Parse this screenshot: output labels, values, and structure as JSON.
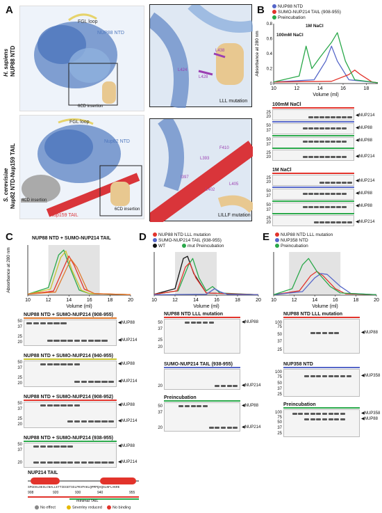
{
  "panel_labels": {
    "a": "A",
    "b": "B",
    "c": "C",
    "d": "D",
    "e": "E"
  },
  "panelA": {
    "top_species": "H. sapiens",
    "top_construct": "NUP88 NTD",
    "top_fgl": "FGL loop",
    "top_ntd": "NUP88 NTD",
    "top_ins": "6CD insertion",
    "top_zoom_caption": "LLL mutation",
    "top_residues": [
      "L438",
      "L424",
      "L428"
    ],
    "bottom_species": "S. cerevisiae",
    "bottom_construct": "Nup82 NTD-Nup159 TAIL",
    "bottom_fgl": "FGL loop",
    "bottom_ntd": "Nup82 NTD",
    "bottom_4cd": "4CD insertion",
    "bottom_6cd": "6CD insertion",
    "bottom_tail": "Nup159 TAIL",
    "bottom_zoom_caption": "LILLF mutation",
    "bottom_residues": [
      "F410",
      "L393",
      "I397",
      "L402",
      "L405"
    ]
  },
  "panelB": {
    "legend": [
      "NUP88 NTD",
      "SUMO-NUP214 TAIL (908-955)",
      "Preincubation"
    ],
    "ylabel": "Absorbance at 280 nm",
    "xlabel": "Volume (ml)",
    "ann_100": "100mM NaCl",
    "ann_1m": "1M NaCl",
    "gel1_title": "100mM NaCl",
    "gel2_title": "1M NaCl",
    "gel_labels": [
      "NUP214",
      "NUP88",
      "NUP88",
      "NUP214",
      "NUP214",
      "NUP88",
      "NUP88",
      "NUP214"
    ]
  },
  "panelC": {
    "title": "NUP88 NTD + SUMO-NUP214 TAIL",
    "ylabel": "Absorbance at 280 nm",
    "xlabel": "Volume (ml)",
    "gel_titles": [
      "NUP88 NTD + SUMO-NUP214 (908-955)",
      "NUP88 NTD + SUMO-NUP214 (940-955)",
      "NUP88 NTD + SUMO-NUP214 (908-952)",
      "NUP88 NTD + SUMO-NUP214 (938-955)"
    ],
    "gel_labels": [
      "NUP88",
      "NUP214",
      "NUP88",
      "NUP214",
      "NUP88",
      "NUP214",
      "NUP88",
      "NUP214"
    ],
    "tail_title": "NUP214 TAIL",
    "tail_seq": "SPGDSLDESLCNALLETTIEGETSSLPKVPAKLQPMPQAQSLNFLAKRE",
    "tail_ticks": [
      "908",
      "920",
      "930",
      "940",
      "955"
    ],
    "minimal": "minimal TAIL",
    "key": [
      "No effect",
      "Severley reduced",
      "No binding"
    ]
  },
  "panelD": {
    "legend": [
      "NUP88 NTD LLL mutation",
      "SUMO-NUP214 TAIL (938-955)",
      "WT",
      "mut Preincubation"
    ],
    "xlabel": "Volume (ml)",
    "gel_titles": [
      "NUP88 NTD LLL mutation",
      "SUMO-NUP214 TAIL (938-955)",
      "Preincubation"
    ],
    "gel_labels": [
      "NUP88",
      "NUP214",
      "NUP88",
      "NUP214"
    ]
  },
  "panelE": {
    "legend": [
      "NUP88 NTD LLL mutation",
      "NUP358 NTD",
      "Preincubation"
    ],
    "xlabel": "Volume (ml)",
    "gel_titles": [
      "NUP88 NTD LLL mutation",
      "NUP358 NTD",
      "Preincubation"
    ],
    "gel_labels": [
      "NUP88",
      "NUP358",
      "NUP358",
      "NUP88"
    ]
  },
  "colors": {
    "red": "#e2332b",
    "blue": "#5566c8",
    "green": "#2aa84a",
    "black": "#111111",
    "protein_blue": "#6b8ec9",
    "tan": "#e8c890",
    "yellow": "#e6d36b",
    "red_helix": "#d9353a",
    "grey": "#aaaaaa"
  },
  "chart_data": [
    {
      "type": "line",
      "panel": "B",
      "xlabel": "Volume (ml)",
      "ylabel": "Absorbance at 280 nm",
      "xlim": [
        10,
        19
      ],
      "ylim": [
        0,
        0.8
      ],
      "xticks": [
        10,
        12,
        14,
        16,
        18
      ],
      "yticks": [
        0,
        0.2,
        0.4,
        0.6,
        0.8
      ],
      "series": [
        {
          "name": "NUP88 NTD",
          "color": "blue",
          "x": [
            10,
            13.5,
            14.5,
            15,
            15.5,
            16.5,
            19
          ],
          "y": [
            0.02,
            0.05,
            0.3,
            0.5,
            0.3,
            0.05,
            0.01
          ]
        },
        {
          "name": "SUMO-NUP214 TAIL (908-955)",
          "color": "red",
          "x": [
            10,
            15,
            16.5,
            17,
            17.5,
            18.5,
            19
          ],
          "y": [
            0.02,
            0.03,
            0.12,
            0.18,
            0.12,
            0.02,
            0.01
          ]
        },
        {
          "name": "Preincubation",
          "color": "green",
          "x": [
            10,
            12.2,
            12.8,
            13.3,
            14,
            15,
            15.5,
            16.2,
            17,
            19
          ],
          "y": [
            0.02,
            0.1,
            0.5,
            0.2,
            0.35,
            0.55,
            0.68,
            0.3,
            0.05,
            0.01
          ]
        }
      ]
    },
    {
      "type": "line",
      "panel": "C",
      "xlabel": "Volume (ml)",
      "ylabel": "Absorbance at 280 nm",
      "xlim": [
        10,
        20
      ],
      "xticks": [
        10,
        12,
        14,
        16,
        18,
        20
      ],
      "series": [
        {
          "color": "green",
          "x": [
            10,
            12,
            13,
            13.5,
            14,
            15,
            16,
            20
          ],
          "y": [
            0.02,
            0.15,
            0.8,
            0.9,
            0.6,
            0.1,
            0.03,
            0.01
          ]
        },
        {
          "color": "yellow",
          "x": [
            10,
            12.2,
            13.2,
            13.7,
            14.3,
            15.2,
            16,
            20
          ],
          "y": [
            0.02,
            0.12,
            0.75,
            0.88,
            0.5,
            0.1,
            0.03,
            0.01
          ]
        },
        {
          "color": "red",
          "x": [
            10,
            12.5,
            13.5,
            14,
            14.5,
            15.5,
            16.5,
            20
          ],
          "y": [
            0.02,
            0.08,
            0.55,
            0.78,
            0.6,
            0.12,
            0.03,
            0.01
          ]
        },
        {
          "color": "orange",
          "x": [
            10,
            12.7,
            13.7,
            14.2,
            14.8,
            15.8,
            16.5,
            20
          ],
          "y": [
            0.02,
            0.06,
            0.5,
            0.72,
            0.55,
            0.1,
            0.03,
            0.01
          ]
        }
      ]
    },
    {
      "type": "line",
      "panel": "D",
      "xlabel": "Volume (ml)",
      "xlim": [
        10,
        20
      ],
      "xticks": [
        10,
        12,
        14,
        16,
        18,
        20
      ],
      "series": [
        {
          "name": "WT",
          "color": "black",
          "x": [
            10,
            12,
            12.8,
            13.2,
            13.8,
            15,
            20
          ],
          "y": [
            0.02,
            0.15,
            0.85,
            0.9,
            0.5,
            0.05,
            0.01
          ]
        },
        {
          "name": "mut Preincubation",
          "color": "green",
          "x": [
            10,
            12.3,
            13.3,
            13.7,
            14.3,
            15,
            15.6,
            16.3,
            20
          ],
          "y": [
            0.02,
            0.1,
            0.7,
            0.85,
            0.4,
            0.1,
            0.2,
            0.05,
            0.01
          ]
        },
        {
          "name": "NUP88 NTD LLL mutation",
          "color": "red",
          "x": [
            10,
            12.2,
            13,
            13.4,
            14,
            15,
            20
          ],
          "y": [
            0.02,
            0.1,
            0.65,
            0.75,
            0.4,
            0.05,
            0.01
          ]
        },
        {
          "name": "SUMO-NUP214 TAIL (938-955)",
          "color": "blue",
          "x": [
            10,
            15,
            15.5,
            15.8,
            16.3,
            17,
            20
          ],
          "y": [
            0.01,
            0.02,
            0.1,
            0.15,
            0.08,
            0.02,
            0.01
          ]
        }
      ]
    },
    {
      "type": "line",
      "panel": "E",
      "xlabel": "Volume (ml)",
      "xlim": [
        10,
        20
      ],
      "xticks": [
        10,
        12,
        14,
        16,
        18,
        20
      ],
      "series": [
        {
          "name": "NUP88 NTD LLL mutation",
          "color": "red",
          "x": [
            10,
            12.5,
            13.6,
            14.2,
            14.8,
            16,
            17,
            20
          ],
          "y": [
            0.01,
            0.1,
            0.45,
            0.55,
            0.45,
            0.15,
            0.03,
            0.01
          ]
        },
        {
          "name": "NUP358 NTD",
          "color": "blue",
          "x": [
            10,
            12.8,
            14,
            14.6,
            15.2,
            16.5,
            17.5,
            20
          ],
          "y": [
            0.01,
            0.08,
            0.4,
            0.5,
            0.48,
            0.2,
            0.04,
            0.01
          ]
        },
        {
          "name": "Preincubation",
          "color": "green",
          "x": [
            10,
            11.8,
            12.8,
            13.4,
            14.2,
            15.5,
            16.5,
            20
          ],
          "y": [
            0.01,
            0.15,
            0.7,
            0.85,
            0.55,
            0.2,
            0.05,
            0.01
          ]
        }
      ]
    }
  ]
}
